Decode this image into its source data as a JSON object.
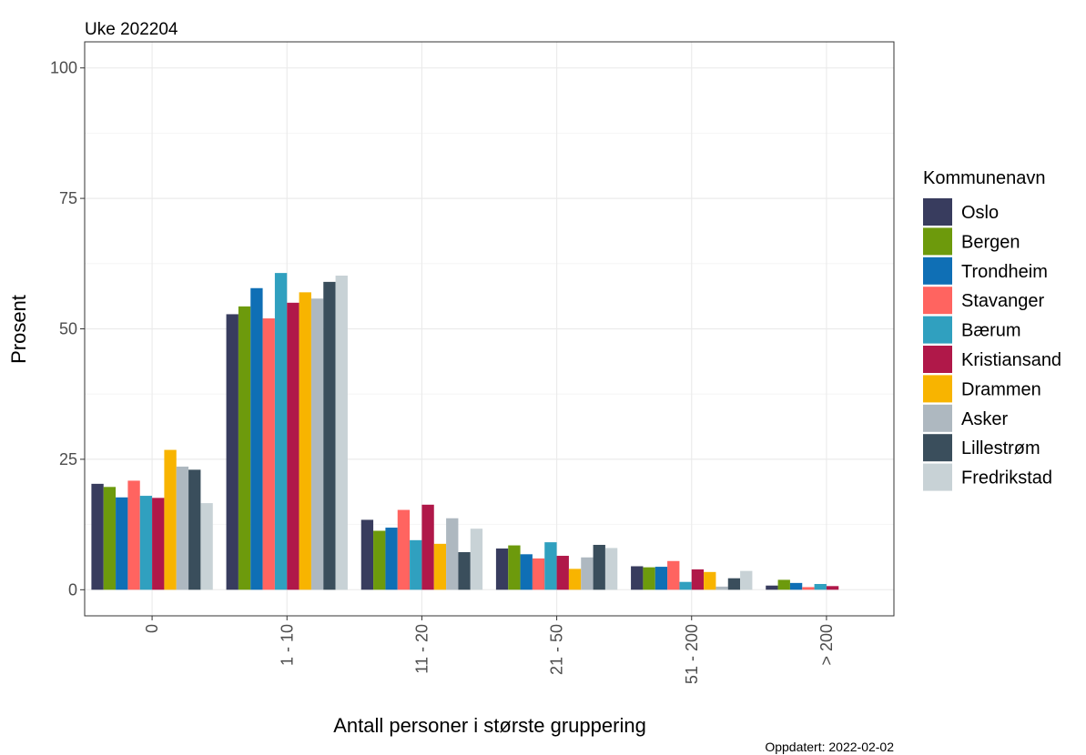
{
  "chart_data": {
    "type": "bar",
    "subtitle": "Uke 202204",
    "xlabel": "Antall personer i største gruppering",
    "ylabel": "Prosent",
    "caption": "Oppdatert: 2022-02-02",
    "ylim": [
      -5,
      105
    ],
    "yticks": [
      0,
      25,
      50,
      75,
      100
    ],
    "grid": true,
    "legend": {
      "title": "Kommunenavn",
      "position": "right"
    },
    "categories": [
      "0",
      "1 - 10",
      "11 - 20",
      "21 - 50",
      "51 - 200",
      "> 200"
    ],
    "series": [
      {
        "name": "Oslo",
        "color": "#383C5E",
        "values": [
          20.3,
          52.8,
          13.4,
          7.9,
          4.5,
          0.8
        ]
      },
      {
        "name": "Bergen",
        "color": "#6D9A0C",
        "values": [
          19.7,
          54.3,
          11.3,
          8.5,
          4.3,
          1.9
        ]
      },
      {
        "name": "Trondheim",
        "color": "#0F6FB5",
        "values": [
          17.7,
          57.8,
          11.9,
          6.8,
          4.4,
          1.3
        ]
      },
      {
        "name": "Stavanger",
        "color": "#FF6460",
        "values": [
          20.9,
          52.0,
          15.3,
          6.0,
          5.5,
          0.5
        ]
      },
      {
        "name": "Bærum",
        "color": "#30A0BF",
        "values": [
          18.0,
          60.7,
          9.5,
          9.1,
          1.5,
          1.1
        ]
      },
      {
        "name": "Kristiansand",
        "color": "#B01849",
        "values": [
          17.6,
          55.0,
          16.3,
          6.5,
          3.9,
          0.7
        ]
      },
      {
        "name": "Drammen",
        "color": "#F8B400",
        "values": [
          26.8,
          57.0,
          8.8,
          4.0,
          3.4,
          0.0
        ]
      },
      {
        "name": "Asker",
        "color": "#AEB8C0",
        "values": [
          23.6,
          55.8,
          13.7,
          6.2,
          0.6,
          0.0
        ]
      },
      {
        "name": "Lillestrøm",
        "color": "#3A4E5C",
        "values": [
          23.0,
          59.0,
          7.2,
          8.6,
          2.2,
          0.0
        ]
      },
      {
        "name": "Fredrikstad",
        "color": "#C8D2D6",
        "values": [
          16.6,
          60.2,
          11.7,
          8.0,
          3.6,
          0.0
        ]
      }
    ]
  }
}
